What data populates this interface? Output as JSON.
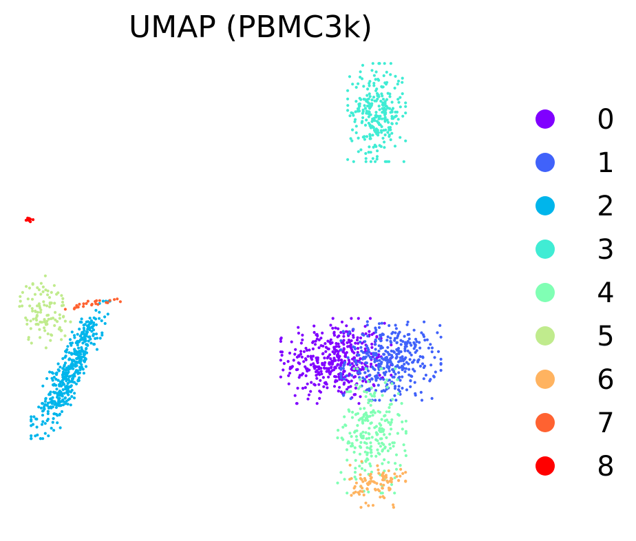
{
  "chart_data": {
    "type": "scatter",
    "title": "UMAP (PBMC3k)",
    "xlabel": "",
    "ylabel": "",
    "axes_visible": false,
    "grid": false,
    "legend_placement": "right",
    "xlim": [
      -6,
      13
    ],
    "ylim": [
      -9,
      6.5
    ],
    "series": [
      {
        "name": "0",
        "color": "#8000ff",
        "n": 420,
        "center": [
          6.9,
          -3.55
        ],
        "spread": [
          1.05,
          0.65
        ]
      },
      {
        "name": "1",
        "color": "#4062fa",
        "n": 360,
        "center": [
          9.2,
          -3.55
        ],
        "spread": [
          0.95,
          0.6
        ]
      },
      {
        "name": "2",
        "color": "#00b5eb",
        "n": 440,
        "center": [
          -4.2,
          -3.85
        ],
        "spread": [
          0.75,
          1.05
        ]
      },
      {
        "name": "3",
        "color": "#40ecd4",
        "n": 280,
        "center": [
          8.6,
          4.8
        ],
        "spread": [
          0.55,
          0.75
        ]
      },
      {
        "name": "4",
        "color": "#80ffb4",
        "n": 240,
        "center": [
          8.4,
          -5.9
        ],
        "spread": [
          0.65,
          0.95
        ]
      },
      {
        "name": "5",
        "color": "#c0eb8d",
        "n": 110,
        "center": [
          -5.3,
          -1.9
        ],
        "spread": [
          0.5,
          0.55
        ]
      },
      {
        "name": "6",
        "color": "#ffb360",
        "n": 90,
        "center": [
          8.6,
          -7.7
        ],
        "spread": [
          0.55,
          0.35
        ]
      },
      {
        "name": "7",
        "color": "#ff6231",
        "n": 24,
        "center": [
          -3.1,
          -1.6
        ],
        "spread": [
          0.6,
          0.2
        ]
      },
      {
        "name": "8",
        "color": "#ff0000",
        "n": 10,
        "center": [
          -5.9,
          1.2
        ],
        "spread": [
          0.1,
          0.06
        ]
      }
    ]
  }
}
